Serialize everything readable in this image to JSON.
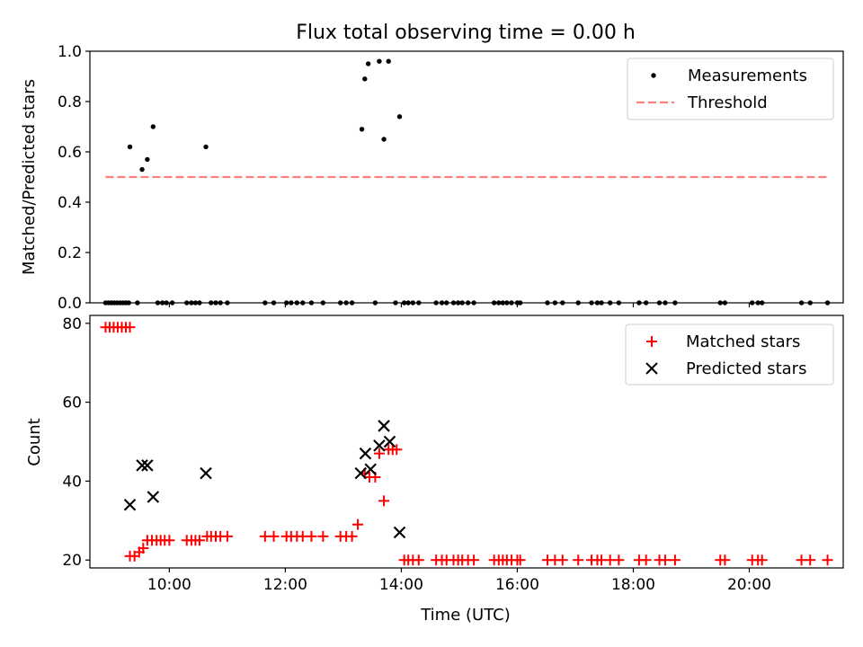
{
  "figure": {
    "title": "Flux total observing time = 0.00 h"
  },
  "chart_data": [
    {
      "type": "scatter",
      "ylabel": "Matched/Predicted stars",
      "xlim": [
        8.63,
        21.62
      ],
      "ylim": [
        0,
        1.0
      ],
      "yticks": [
        0.0,
        0.2,
        0.4,
        0.6,
        0.8,
        1.0
      ],
      "ytick_labels": [
        "0.0",
        "0.2",
        "0.4",
        "0.6",
        "0.8",
        "1.0"
      ],
      "xticks": [
        10,
        12,
        14,
        16,
        18,
        20
      ],
      "grid": false,
      "legend_position": "top-right",
      "legend": [
        "Measurements",
        "Threshold"
      ],
      "series": [
        {
          "name": "Measurements",
          "color": "#000000",
          "marker": "dot",
          "x": [
            9.32,
            9.53,
            9.62,
            9.72,
            10.63,
            13.32,
            13.37,
            13.43,
            13.62,
            13.7,
            13.78,
            13.97,
            8.9,
            8.95,
            9.0,
            9.05,
            9.1,
            9.15,
            9.2,
            9.25,
            9.3,
            9.45,
            9.8,
            9.88,
            9.95,
            10.05,
            10.3,
            10.38,
            10.45,
            10.52,
            10.72,
            10.8,
            10.88,
            11.0,
            11.65,
            11.8,
            12.02,
            12.1,
            12.2,
            12.3,
            12.45,
            12.65,
            12.95,
            13.05,
            13.15,
            13.55,
            13.9,
            14.05,
            14.12,
            14.2,
            14.3,
            14.6,
            14.7,
            14.78,
            14.9,
            14.98,
            15.05,
            15.15,
            15.25,
            15.6,
            15.68,
            15.75,
            15.82,
            15.9,
            16.0,
            16.05,
            16.52,
            16.65,
            16.78,
            17.05,
            17.28,
            17.38,
            17.45,
            17.6,
            17.75,
            18.1,
            18.22,
            18.45,
            18.55,
            18.72,
            19.5,
            19.58,
            20.05,
            20.15,
            20.22,
            20.9,
            21.05,
            21.35
          ],
          "y": [
            0.62,
            0.53,
            0.57,
            0.7,
            0.62,
            0.69,
            0.89,
            0.95,
            0.96,
            0.65,
            0.96,
            0.74,
            0,
            0,
            0,
            0,
            0,
            0,
            0,
            0,
            0,
            0,
            0,
            0,
            0,
            0,
            0,
            0,
            0,
            0,
            0,
            0,
            0,
            0,
            0,
            0,
            0,
            0,
            0,
            0,
            0,
            0,
            0,
            0,
            0,
            0,
            0,
            0,
            0,
            0,
            0,
            0,
            0,
            0,
            0,
            0,
            0,
            0,
            0,
            0,
            0,
            0,
            0,
            0,
            0,
            0,
            0,
            0,
            0,
            0,
            0,
            0,
            0,
            0,
            0,
            0,
            0,
            0,
            0,
            0,
            0,
            0,
            0,
            0,
            0,
            0,
            0,
            0
          ]
        },
        {
          "name": "Threshold",
          "color": "#ff7f7f",
          "style": "dashed",
          "x": [
            8.9,
            21.35
          ],
          "y": [
            0.5,
            0.5
          ]
        }
      ]
    },
    {
      "type": "scatter",
      "xlabel": "Time (UTC)",
      "ylabel": "Count",
      "xlim": [
        8.63,
        21.62
      ],
      "ylim": [
        18,
        82
      ],
      "yticks": [
        20,
        40,
        60,
        80
      ],
      "ytick_labels": [
        "20",
        "40",
        "60",
        "80"
      ],
      "xticks": [
        10,
        12,
        14,
        16,
        18,
        20
      ],
      "xtick_labels": [
        "10:00",
        "12:00",
        "14:00",
        "16:00",
        "18:00",
        "20:00"
      ],
      "grid": false,
      "legend_position": "top-right",
      "legend": [
        "Matched stars",
        "Predicted stars"
      ],
      "series": [
        {
          "name": "Matched stars",
          "color": "#ff0000",
          "marker": "plus",
          "x": [
            8.9,
            8.97,
            9.04,
            9.11,
            9.18,
            9.25,
            9.32,
            9.32,
            9.4,
            9.48,
            9.55,
            9.62,
            9.7,
            9.78,
            9.85,
            9.92,
            10.0,
            10.3,
            10.38,
            10.45,
            10.52,
            10.65,
            10.72,
            10.8,
            10.88,
            11.0,
            11.65,
            11.8,
            12.02,
            12.1,
            12.2,
            12.3,
            12.45,
            12.65,
            12.95,
            13.05,
            13.15,
            13.25,
            13.37,
            13.45,
            13.55,
            13.62,
            13.7,
            13.78,
            13.85,
            13.92,
            14.05,
            14.12,
            14.2,
            14.3,
            14.6,
            14.7,
            14.78,
            14.9,
            14.98,
            15.05,
            15.15,
            15.25,
            15.6,
            15.68,
            15.75,
            15.82,
            15.9,
            16.0,
            16.05,
            16.52,
            16.65,
            16.78,
            17.05,
            17.28,
            17.38,
            17.45,
            17.6,
            17.75,
            18.1,
            18.22,
            18.45,
            18.55,
            18.72,
            19.5,
            19.58,
            20.05,
            20.15,
            20.22,
            20.9,
            21.05,
            21.35
          ],
          "y": [
            79,
            79,
            79,
            79,
            79,
            79,
            79,
            21,
            21,
            22,
            23,
            25,
            25,
            25,
            25,
            25,
            25,
            25,
            25,
            25,
            25,
            26,
            26,
            26,
            26,
            26,
            26,
            26,
            26,
            26,
            26,
            26,
            26,
            26,
            26,
            26,
            26,
            29,
            42,
            41,
            41,
            47,
            35,
            48,
            48,
            48,
            20,
            20,
            20,
            20,
            20,
            20,
            20,
            20,
            20,
            20,
            20,
            20,
            20,
            20,
            20,
            20,
            20,
            20,
            20,
            20,
            20,
            20,
            20,
            20,
            20,
            20,
            20,
            20,
            20,
            20,
            20,
            20,
            20,
            20,
            20,
            20,
            20,
            20,
            20,
            20,
            20
          ]
        },
        {
          "name": "Predicted stars",
          "color": "#000000",
          "marker": "x",
          "x": [
            9.32,
            9.53,
            9.62,
            9.72,
            10.63,
            13.3,
            13.38,
            13.47,
            13.62,
            13.7,
            13.8,
            13.97
          ],
          "y": [
            34,
            44,
            44,
            36,
            42,
            42,
            47,
            43,
            49,
            54,
            50,
            27
          ]
        }
      ]
    }
  ]
}
